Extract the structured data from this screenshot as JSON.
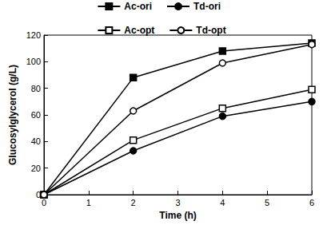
{
  "chart_data": {
    "type": "line",
    "x_label": "Time (h)",
    "y_label": "Glucosylglycerol (g/L)",
    "xlim": [
      0,
      6
    ],
    "xticks": [
      0,
      1,
      2,
      3,
      4,
      5,
      6
    ],
    "ylim": [
      0,
      120
    ],
    "yticks": [
      0,
      20,
      40,
      60,
      80,
      100,
      120
    ],
    "legend": "top",
    "grid": false,
    "series": [
      {
        "name": "Ac-ori",
        "color": "#000000",
        "marker": "square",
        "x": [
          0,
          2,
          4,
          6
        ],
        "values": [
          0,
          88,
          108,
          114
        ]
      },
      {
        "name": "Td-ori",
        "color": "#000000",
        "marker": "circle",
        "x": [
          0,
          2,
          4,
          6
        ],
        "values": [
          0,
          33,
          59,
          70
        ]
      },
      {
        "name": "Ac-opt",
        "color": "#000000",
        "marker": "open-square",
        "x": [
          0,
          2,
          4,
          6
        ],
        "values": [
          0,
          41,
          65,
          79
        ]
      },
      {
        "name": "Td-opt",
        "color": "#000000",
        "marker": "open-circle",
        "x": [
          0,
          2,
          4,
          6
        ],
        "values": [
          0,
          63,
          99,
          113
        ]
      }
    ]
  }
}
